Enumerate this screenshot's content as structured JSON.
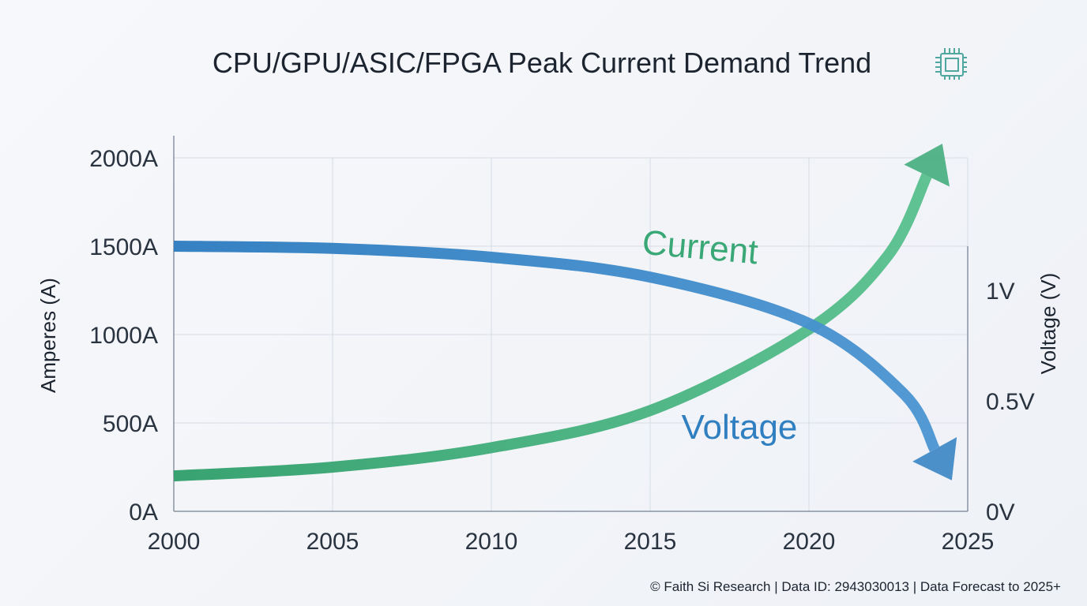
{
  "chart_data": {
    "type": "line",
    "title": "CPU/GPU/ASIC/FPGA Peak Current Demand Trend",
    "title_icon": "chip-icon",
    "ylabel": "Amperes (A)",
    "y2label": "Voltage (V)",
    "xlim": [
      2000,
      2025
    ],
    "ylim": [
      0,
      2000
    ],
    "y2lim": [
      0,
      1.2
    ],
    "x_ticks": [
      "2000",
      "2005",
      "2010",
      "2015",
      "2020",
      "2025"
    ],
    "y_ticks": [
      "0A",
      "500A",
      "1000A",
      "1500A",
      "2000A"
    ],
    "y2_ticks": [
      "0V",
      "0.5V",
      "1V"
    ],
    "grid": true,
    "series": [
      {
        "name": "Current",
        "axis": "left",
        "color": "#3aa876",
        "x": [
          2000,
          2005,
          2010,
          2015,
          2020,
          2022.5,
          2024.2
        ],
        "values": [
          200,
          250,
          360,
          570,
          1030,
          1450,
          2080
        ]
      },
      {
        "name": "Voltage",
        "axis": "right",
        "color": "#2f7fc1",
        "x": [
          2000,
          2005,
          2010,
          2015,
          2020,
          2023,
          2024.5
        ],
        "values": [
          1.2,
          1.19,
          1.15,
          1.06,
          0.85,
          0.53,
          0.14
        ]
      }
    ],
    "footer": "© Faith Si Research | Data ID: 2943030013 | Data Forecast to 2025+"
  }
}
